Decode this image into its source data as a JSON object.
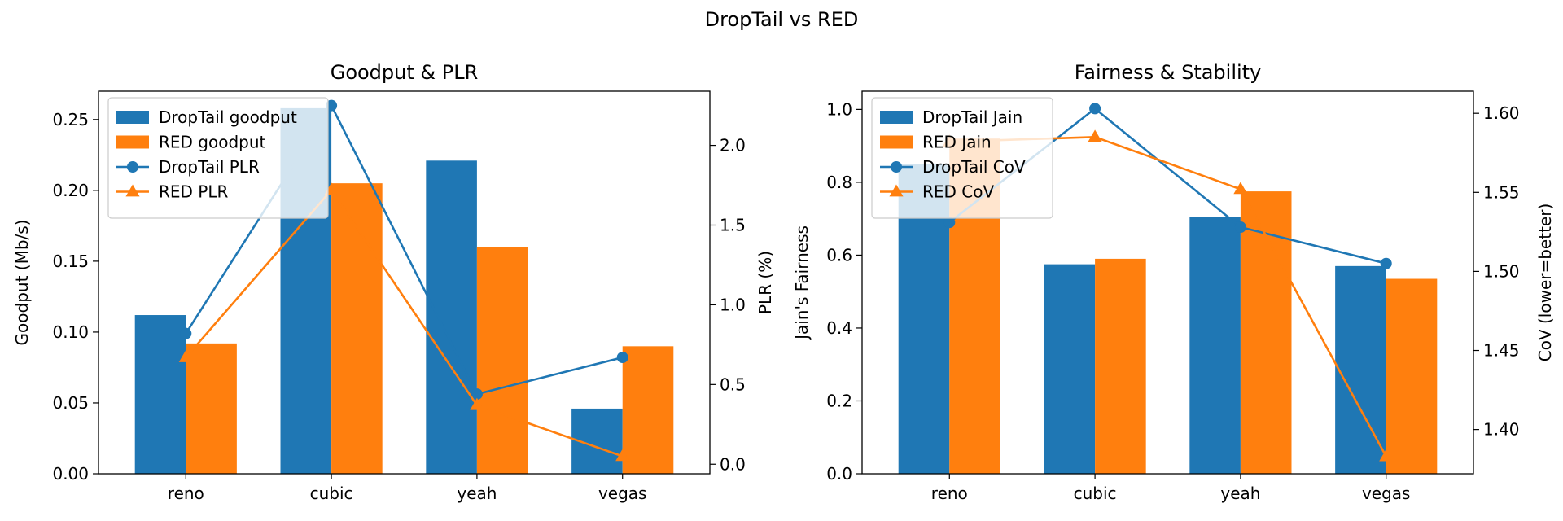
{
  "figure_title": "DropTail vs RED",
  "colors": {
    "droptail": "#1f77b4",
    "red": "#ff7f0e",
    "axis": "#000000"
  },
  "chart_data": [
    {
      "type": "bar",
      "title": "Goodput & PLR",
      "categories": [
        "reno",
        "cubic",
        "yeah",
        "vegas"
      ],
      "xlabel": "",
      "ylabel": "Goodput (Mb/s)",
      "ylim": [
        0,
        0.27
      ],
      "yticks": [
        0.0,
        0.05,
        0.1,
        0.15,
        0.2,
        0.25
      ],
      "y2label": "PLR (%)",
      "y2lim": [
        -0.06,
        2.34
      ],
      "y2ticks": [
        0.0,
        0.5,
        1.0,
        1.5,
        2.0
      ],
      "legend_position": "upper-left",
      "series": [
        {
          "name": "DropTail goodput",
          "kind": "bar",
          "axis": "left",
          "color": "#1f77b4",
          "values": [
            0.112,
            0.258,
            0.221,
            0.046
          ]
        },
        {
          "name": "RED goodput",
          "kind": "bar",
          "axis": "left",
          "color": "#ff7f0e",
          "values": [
            0.092,
            0.205,
            0.16,
            0.09
          ]
        },
        {
          "name": "DropTail PLR",
          "kind": "line",
          "marker": "circle",
          "axis": "right",
          "color": "#1f77b4",
          "values": [
            0.82,
            2.25,
            0.44,
            0.67
          ]
        },
        {
          "name": "RED PLR",
          "kind": "line",
          "marker": "triangle",
          "axis": "right",
          "color": "#ff7f0e",
          "values": [
            0.67,
            1.72,
            0.37,
            0.05
          ]
        }
      ]
    },
    {
      "type": "bar",
      "title": "Fairness & Stability",
      "categories": [
        "reno",
        "cubic",
        "yeah",
        "vegas"
      ],
      "xlabel": "",
      "ylabel": "Jain's Fairness",
      "ylim": [
        0,
        1.05
      ],
      "yticks": [
        0.0,
        0.2,
        0.4,
        0.6,
        0.8,
        1.0
      ],
      "y2label": "CoV (lower=better)",
      "y2lim": [
        1.372,
        1.614
      ],
      "y2ticks": [
        1.4,
        1.45,
        1.5,
        1.55,
        1.6
      ],
      "legend_position": "upper-left",
      "series": [
        {
          "name": "DropTail Jain",
          "kind": "bar",
          "axis": "left",
          "color": "#1f77b4",
          "values": [
            0.85,
            0.575,
            0.705,
            0.57
          ]
        },
        {
          "name": "RED Jain",
          "kind": "bar",
          "axis": "left",
          "color": "#ff7f0e",
          "values": [
            0.92,
            0.59,
            0.775,
            0.535
          ]
        },
        {
          "name": "DropTail CoV",
          "kind": "line",
          "marker": "circle",
          "axis": "right",
          "color": "#1f77b4",
          "values": [
            1.531,
            1.603,
            1.528,
            1.505
          ]
        },
        {
          "name": "RED CoV",
          "kind": "line",
          "marker": "triangle",
          "axis": "right",
          "color": "#ff7f0e",
          "values": [
            1.582,
            1.585,
            1.552,
            1.383
          ]
        }
      ]
    }
  ]
}
